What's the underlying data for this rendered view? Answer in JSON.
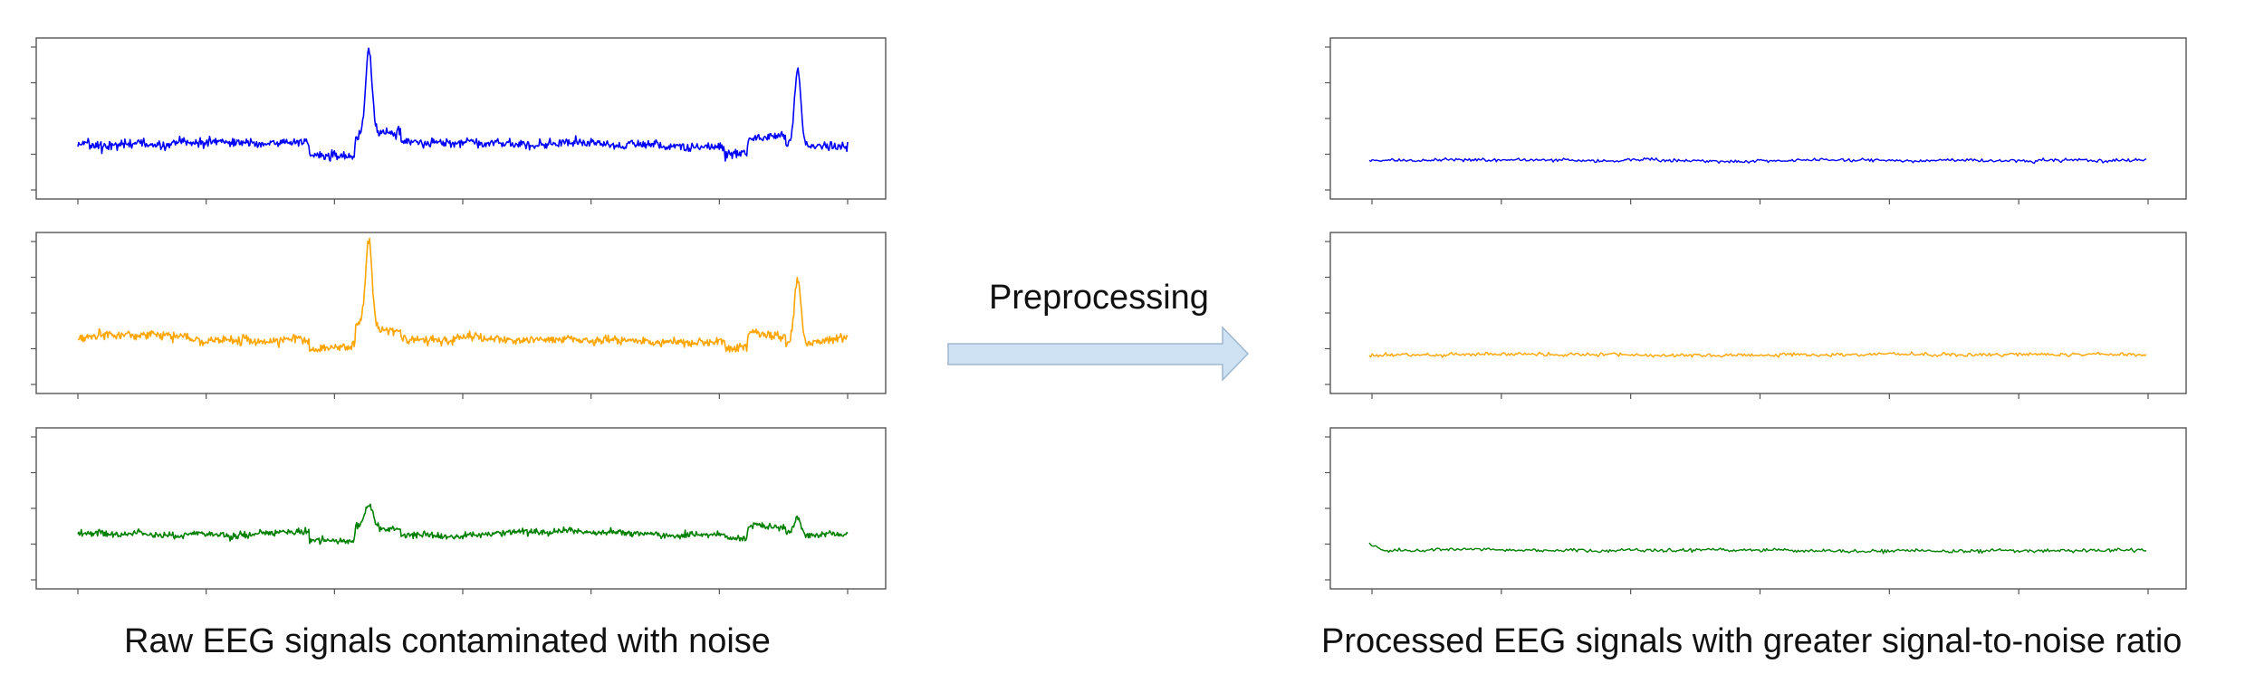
{
  "labels": {
    "left_caption": "Raw EEG signals contaminated with noise",
    "right_caption": "Processed EEG signals with greater signal-to-noise ratio",
    "arrow_label": "Preprocessing"
  },
  "colors": {
    "blue": "#0000ff",
    "orange": "#ffa500",
    "green": "#008000",
    "arrow_fill": "#cfe2f3",
    "arrow_stroke": "#9fb8cf",
    "frame": "#555555"
  },
  "panels": [
    {
      "group": "raw",
      "color": "blue"
    },
    {
      "group": "raw",
      "color": "orange"
    },
    {
      "group": "raw",
      "color": "green"
    },
    {
      "group": "processed",
      "color": "blue"
    },
    {
      "group": "processed",
      "color": "orange"
    },
    {
      "group": "processed",
      "color": "green"
    }
  ]
}
